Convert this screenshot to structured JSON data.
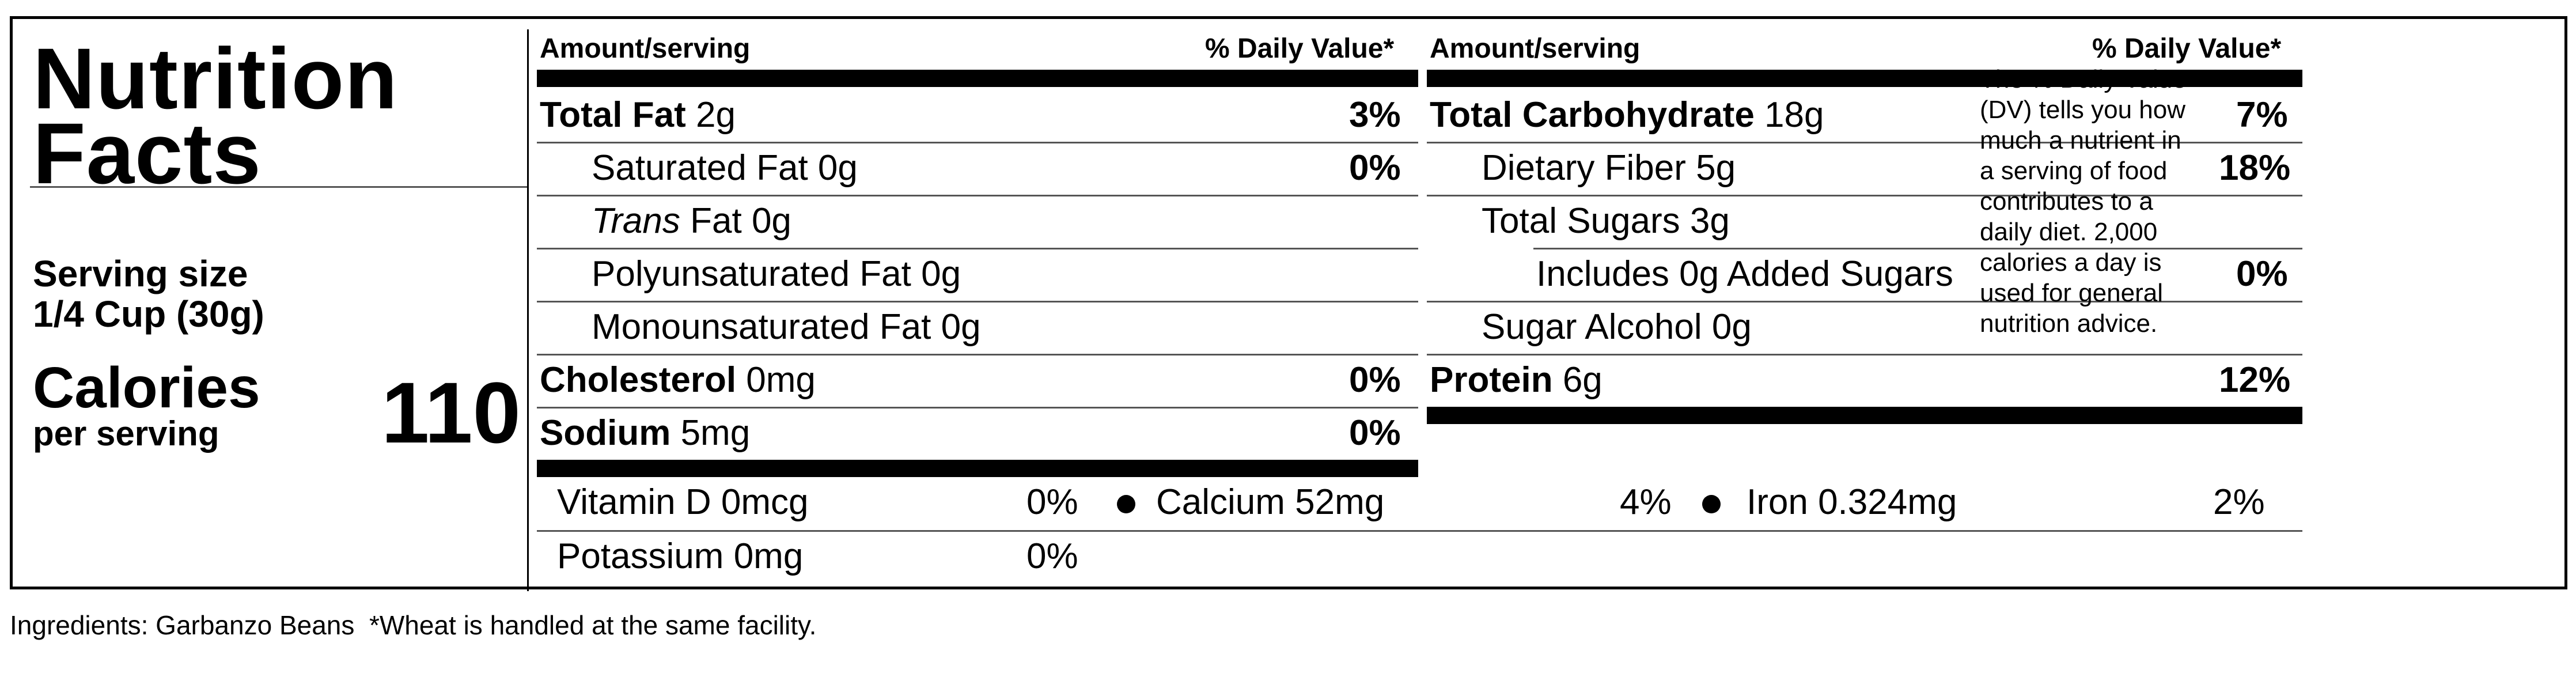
{
  "label": {
    "title_line1": "Nutrition",
    "title_line2": "Facts",
    "serving_size_label": "Serving size",
    "serving_size_value": "1/4 Cup (30g)",
    "calories_label": "Calories",
    "calories_sublabel": "per serving",
    "calories_value": "110"
  },
  "headers": {
    "amount": "Amount/serving",
    "daily_value": "% Daily Value*"
  },
  "left_column": [
    {
      "name": "Total Fat",
      "amount": "2g",
      "dv": "3%"
    },
    {
      "name": "Saturated Fat",
      "amount": "0g",
      "dv": "0%"
    },
    {
      "name_italic": "Trans",
      "name": "Fat",
      "amount": "0g",
      "dv": ""
    },
    {
      "name": "Polyunsaturated Fat",
      "amount": "0g",
      "dv": ""
    },
    {
      "name": "Monounsaturated Fat",
      "amount": "0g",
      "dv": ""
    },
    {
      "name": "Cholesterol",
      "amount": "0mg",
      "dv": "0%"
    },
    {
      "name": "Sodium",
      "amount": "5mg",
      "dv": "0%"
    }
  ],
  "right_column": [
    {
      "name": "Total Carbohydrate",
      "amount": "18g",
      "dv": "7%"
    },
    {
      "name": "Dietary Fiber",
      "amount": "5g",
      "dv": "18%"
    },
    {
      "name": "Total Sugars",
      "amount": "3g",
      "dv": ""
    },
    {
      "name": "Includes 0g Added Sugars",
      "amount": "",
      "dv": "0%"
    },
    {
      "name": "Sugar Alcohol",
      "amount": "0g",
      "dv": ""
    },
    {
      "name": "Protein",
      "amount": "6g",
      "dv": "12%"
    }
  ],
  "vitamins": [
    {
      "name": "Vitamin D",
      "amount": "0mcg",
      "dv": "0%"
    },
    {
      "name": "Calcium",
      "amount": "52mg",
      "dv": "4%"
    },
    {
      "name": "Iron",
      "amount": "0.324mg",
      "dv": "2%"
    },
    {
      "name": "Potassium",
      "amount": "0mg",
      "dv": "0%"
    }
  ],
  "footnote": {
    "star": "*",
    "lines": [
      "The % Daily Value",
      "(DV) tells you how",
      "much a nutrient in",
      "a serving of food",
      "contributes to a",
      "daily diet. 2,000",
      "calories a day is",
      "used for general",
      "nutrition advice."
    ]
  },
  "ingredients": "Ingredients: Garbanzo Beans  *Wheat is handled at the same facility."
}
